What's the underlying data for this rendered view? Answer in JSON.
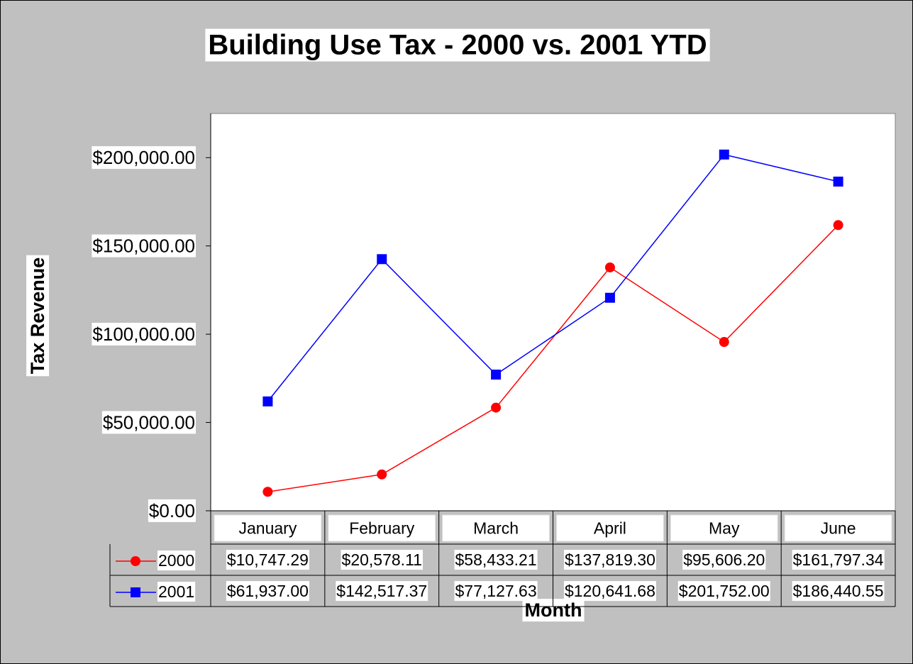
{
  "chart_data": {
    "type": "line",
    "title": "Building Use Tax - 2000 vs. 2001 YTD",
    "y_label": "Tax Revenue",
    "x_label": "Month",
    "categories": [
      "January",
      "February",
      "March",
      "April",
      "May",
      "June"
    ],
    "series": [
      {
        "name": "2000",
        "color": "#ff0000",
        "marker": "circle",
        "values": [
          10747.29,
          20578.11,
          58433.21,
          137819.3,
          95606.2,
          161797.34
        ],
        "value_labels": [
          "$10,747.29",
          "$20,578.11",
          "$58,433.21",
          "$137,819.30",
          "$95,606.20",
          "$161,797.34"
        ]
      },
      {
        "name": "2001",
        "color": "#0000ff",
        "marker": "square",
        "values": [
          61937.0,
          142517.37,
          77127.63,
          120641.68,
          201752.0,
          186440.55
        ],
        "value_labels": [
          "$61,937.00",
          "$142,517.37",
          "$77,127.63",
          "$120,641.68",
          "$201,752.00",
          "$186,440.55"
        ]
      }
    ],
    "ylim": [
      0,
      225000
    ],
    "yticks": [
      {
        "value": 0,
        "label": "$0.00"
      },
      {
        "value": 50000,
        "label": "$50,000.00"
      },
      {
        "value": 100000,
        "label": "$100,000.00"
      },
      {
        "value": 150000,
        "label": "$150,000.00"
      },
      {
        "value": 200000,
        "label": "$200,000.00"
      }
    ],
    "data_table": true
  }
}
